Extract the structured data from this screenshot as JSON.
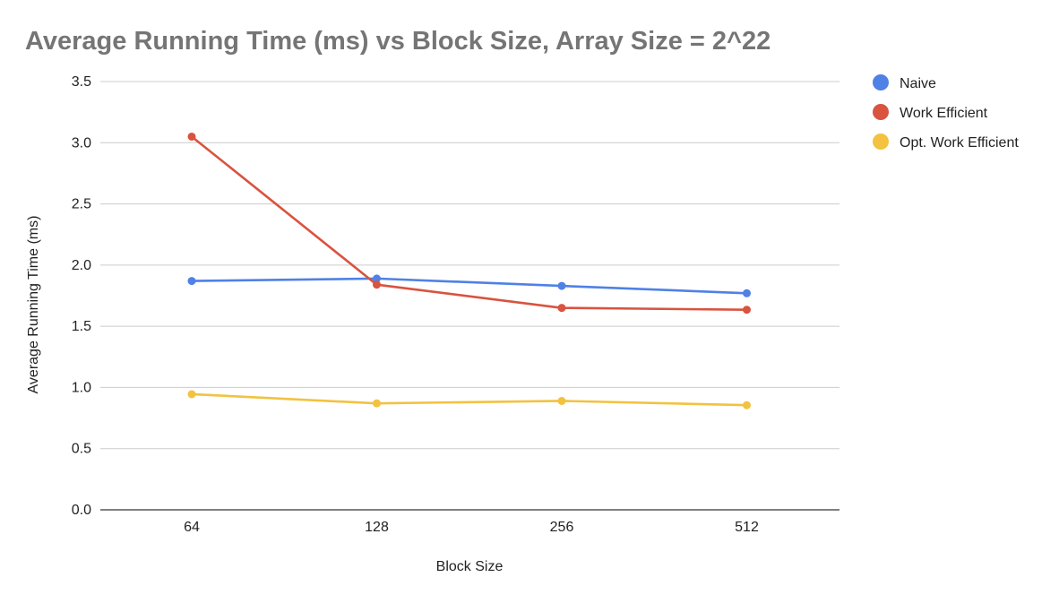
{
  "chart_data": {
    "type": "line",
    "title": "Average Running Time (ms) vs Block Size, Array Size = 2^22",
    "xlabel": "Block Size",
    "ylabel": "Average Running Time (ms)",
    "categories": [
      "64",
      "128",
      "256",
      "512"
    ],
    "ylim": [
      0,
      3.5
    ],
    "yticks": [
      "0.0",
      "0.5",
      "1.0",
      "1.5",
      "2.0",
      "2.5",
      "3.0",
      "3.5"
    ],
    "grid": true,
    "legend_position": "right",
    "series": [
      {
        "name": "Naive",
        "color": "#4f81e6",
        "values": [
          1.87,
          1.89,
          1.83,
          1.77
        ]
      },
      {
        "name": "Work Efficient",
        "color": "#d9533f",
        "values": [
          3.05,
          1.84,
          1.65,
          1.635
        ]
      },
      {
        "name": "Opt. Work Efficient",
        "color": "#f2c240",
        "values": [
          0.945,
          0.87,
          0.89,
          0.855
        ]
      }
    ]
  }
}
